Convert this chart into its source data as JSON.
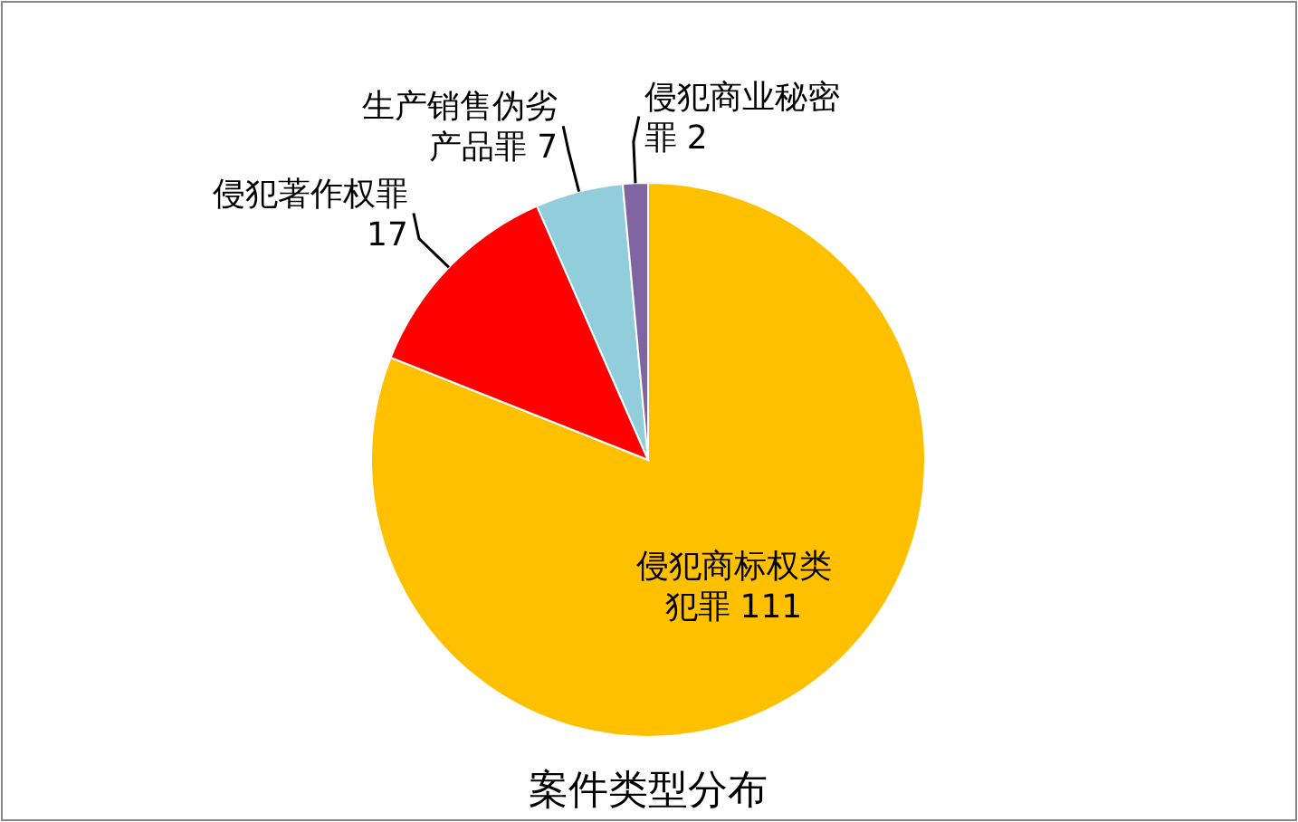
{
  "chart_data": {
    "type": "pie",
    "title": "案件类型分布",
    "categories": [
      "侵犯商标权类犯罪",
      "侵犯著作权罪",
      "生产销售伪劣产品罪",
      "侵犯商业秘密罪"
    ],
    "values": [
      111,
      17,
      7,
      2
    ],
    "colors": [
      "#ffc000",
      "#ff0000",
      "#92cddc",
      "#8064a2"
    ],
    "data_labels": true
  }
}
